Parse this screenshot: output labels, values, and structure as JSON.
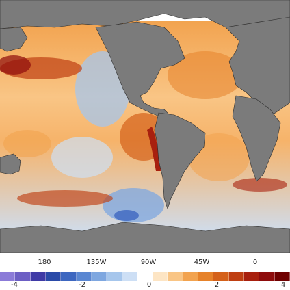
{
  "map": {
    "kind": "global sea surface temperature anomaly map",
    "ocean_color_scheme": "diverging blue-white-orange-red",
    "land_color": "#7b7b7b",
    "no_data_color": "#ffffff",
    "border_color": "#2b2b2b",
    "regions_warm": [
      "North Pacific",
      "Eastern Equatorial Pacific",
      "Peru coast",
      "North Atlantic",
      "South Atlantic",
      "Southern Ocean (Indian sector)"
    ],
    "regions_cool": [
      "Central North Pacific",
      "South Pacific west of Chile"
    ]
  },
  "longitude_labels": [
    "180",
    "135W",
    "90W",
    "45W",
    "0"
  ],
  "colorbar": {
    "tick_labels": [
      "-4",
      "-2",
      "0",
      "2",
      "4"
    ],
    "colors": [
      "#8b7bd8",
      "#6c5fc4",
      "#3f3aa6",
      "#2a4aa8",
      "#3d67c0",
      "#5a87d2",
      "#7ea7e0",
      "#a6c6ec",
      "#cddff5",
      "#ffffff",
      "#fde5c4",
      "#f9c585",
      "#f2a34f",
      "#e6822a",
      "#d4611a",
      "#bf3f12",
      "#a8200e",
      "#8e0c0c",
      "#6f0000"
    ]
  }
}
